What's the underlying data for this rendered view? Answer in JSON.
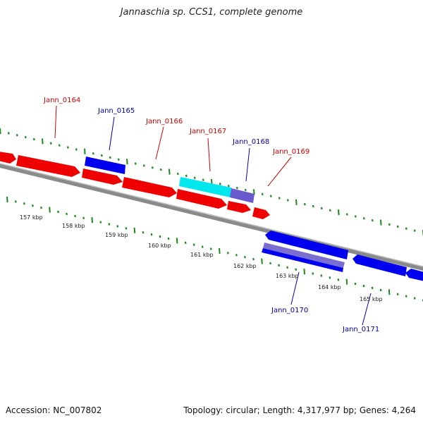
{
  "header": {
    "title": "Jannaschia sp. CCS1, complete genome"
  },
  "footer": {
    "accession": "Accession: NC_007802",
    "summary": "Topology: circular; Length: 4,317,977 bp; Genes: 4,264"
  },
  "colors": {
    "forward_gene": "#ff0000",
    "reverse_gene": "#0000ff",
    "highlight_gene": "#00ffff",
    "tick": "#1a8a1a",
    "backbone": "#808080",
    "forward_label": "#cc0000",
    "reverse_label": "#0000aa"
  },
  "scale": {
    "ticks": [
      "157 kbp",
      "158 kbp",
      "159 kbp",
      "160 kbp",
      "161 kbp",
      "162 kbp",
      "163 kbp",
      "164 kbp",
      "165 kbp"
    ]
  },
  "genes": [
    {
      "label": "",
      "strand": "+"
    },
    {
      "label": "Jann_0164",
      "strand": "+"
    },
    {
      "label": "Jann_0165",
      "strand": "-"
    },
    {
      "label": "Jann_0166",
      "strand": "+"
    },
    {
      "label": "Jann_0167",
      "strand": "+"
    },
    {
      "label": "Jann_0168",
      "strand": "-"
    },
    {
      "label": "Jann_0169",
      "strand": "+"
    },
    {
      "label": "",
      "strand": "+"
    },
    {
      "label": "Jann_0170",
      "strand": "-"
    },
    {
      "label": "",
      "strand": "-"
    },
    {
      "label": "Jann_0171",
      "strand": "-"
    },
    {
      "label": "",
      "strand": "-"
    }
  ]
}
